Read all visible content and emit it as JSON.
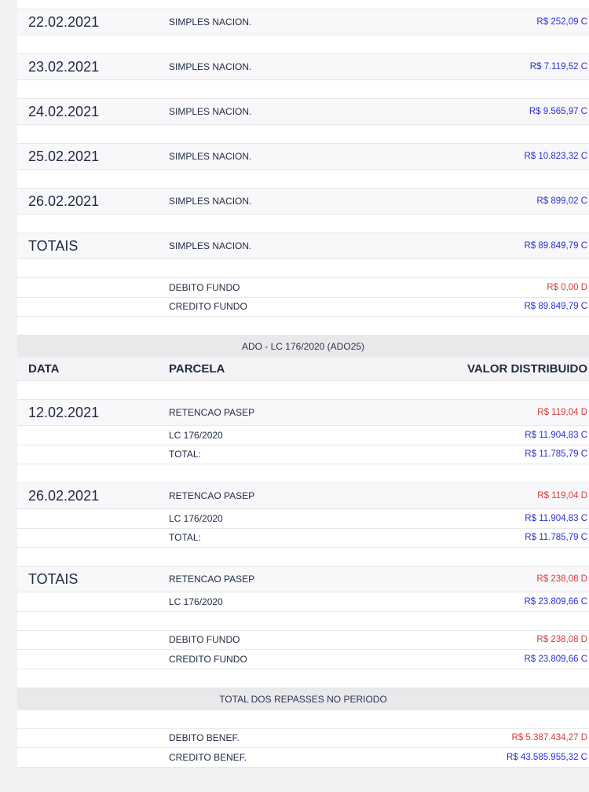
{
  "colors": {
    "credit": "#2b2fd0",
    "debit": "#d93b3b",
    "text": "#1f2a44",
    "section_bg": "#e9e9ec"
  },
  "rows": [
    {
      "type": "top"
    },
    {
      "type": "date",
      "date": "22.02.2021",
      "parcela": "SIMPLES NACION.",
      "valor": "R$ 252,09 C",
      "kind": "C"
    },
    {
      "type": "spacer"
    },
    {
      "type": "date",
      "date": "23.02.2021",
      "parcela": "SIMPLES NACION.",
      "valor": "R$ 7.119,52 C",
      "kind": "C"
    },
    {
      "type": "spacer"
    },
    {
      "type": "date",
      "date": "24.02.2021",
      "parcela": "SIMPLES NACION.",
      "valor": "R$ 9.565,97 C",
      "kind": "C"
    },
    {
      "type": "spacer"
    },
    {
      "type": "date",
      "date": "25.02.2021",
      "parcela": "SIMPLES NACION.",
      "valor": "R$ 10.823,32 C",
      "kind": "C"
    },
    {
      "type": "spacer"
    },
    {
      "type": "date",
      "date": "26.02.2021",
      "parcela": "SIMPLES NACION.",
      "valor": "R$ 899,02 C",
      "kind": "C"
    },
    {
      "type": "spacer"
    },
    {
      "type": "date",
      "date": "TOTAIS",
      "parcela": "SIMPLES NACION.",
      "valor": "R$ 89.849,79 C",
      "kind": "C"
    },
    {
      "type": "spacer"
    },
    {
      "type": "line",
      "parcela": "DEBITO FUNDO",
      "valor": "R$ 0,00 D",
      "kind": "D"
    },
    {
      "type": "line",
      "parcela": "CREDITO FUNDO",
      "valor": "R$ 89.849,79 C",
      "kind": "C"
    },
    {
      "type": "spacer"
    },
    {
      "type": "section",
      "title": "ADO - LC 176/2020 (ADO25)"
    },
    {
      "type": "colhead",
      "data": "DATA",
      "parcela": "PARCELA",
      "valor": "VALOR DISTRIBUIDO"
    },
    {
      "type": "spacer"
    },
    {
      "type": "date",
      "date": "12.02.2021",
      "parcela": "RETENCAO PASEP",
      "valor": "R$ 119,04 D",
      "kind": "D"
    },
    {
      "type": "line",
      "parcela": "LC 176/2020",
      "valor": "R$ 11.904,83 C",
      "kind": "C"
    },
    {
      "type": "line",
      "parcela": "TOTAL:",
      "valor": "R$ 11.785,79 C",
      "kind": "C"
    },
    {
      "type": "spacer"
    },
    {
      "type": "date",
      "date": "26.02.2021",
      "parcela": "RETENCAO PASEP",
      "valor": "R$ 119,04 D",
      "kind": "D"
    },
    {
      "type": "line",
      "parcela": "LC 176/2020",
      "valor": "R$ 11.904,83 C",
      "kind": "C"
    },
    {
      "type": "line",
      "parcela": "TOTAL:",
      "valor": "R$ 11.785,79 C",
      "kind": "C"
    },
    {
      "type": "spacer"
    },
    {
      "type": "date",
      "date": "TOTAIS",
      "parcela": "RETENCAO PASEP",
      "valor": "R$ 238,08 D",
      "kind": "D"
    },
    {
      "type": "line",
      "parcela": "LC 176/2020",
      "valor": "R$ 23.809,66 C",
      "kind": "C"
    },
    {
      "type": "spacer"
    },
    {
      "type": "line",
      "parcela": "DEBITO FUNDO",
      "valor": "R$ 238,08 D",
      "kind": "D"
    },
    {
      "type": "line",
      "parcela": "CREDITO FUNDO",
      "valor": "R$ 23.809,66 C",
      "kind": "C"
    },
    {
      "type": "spacer"
    },
    {
      "type": "section",
      "title": "TOTAL DOS REPASSES NO PERIODO"
    },
    {
      "type": "spacer"
    },
    {
      "type": "line",
      "parcela": "DEBITO BENEF.",
      "valor": "R$ 5.387.434,27 D",
      "kind": "D"
    },
    {
      "type": "line",
      "parcela": "CREDITO BENEF.",
      "valor": "R$ 43.585.955,32 C",
      "kind": "C"
    }
  ]
}
